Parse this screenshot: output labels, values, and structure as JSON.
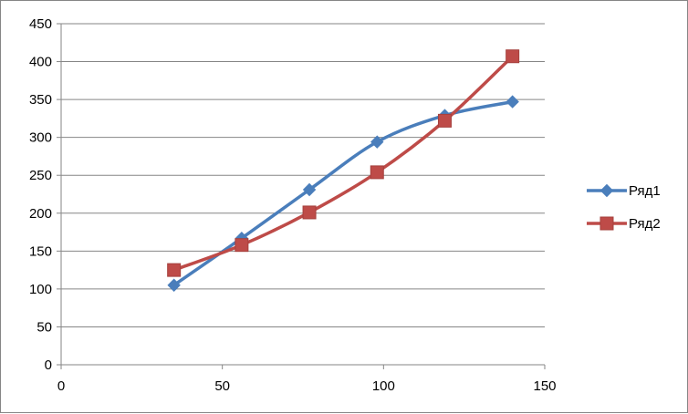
{
  "chart_data": {
    "type": "scatter",
    "title": "",
    "xlabel": "",
    "ylabel": "",
    "xlim": [
      0,
      150
    ],
    "ylim": [
      0,
      450
    ],
    "x_ticks": [
      0,
      50,
      100,
      150
    ],
    "y_ticks": [
      0,
      50,
      100,
      150,
      200,
      250,
      300,
      350,
      400,
      450
    ],
    "grid": {
      "horizontal": true,
      "vertical": false
    },
    "smooth_lines": true,
    "legend_position": "right",
    "series": [
      {
        "name": "Ряд1",
        "color": "#4a7ebb",
        "marker": "diamond",
        "points": [
          [
            35,
            105
          ],
          [
            56,
            167
          ],
          [
            77,
            231
          ],
          [
            98,
            294
          ],
          [
            119,
            329
          ],
          [
            140,
            347
          ]
        ]
      },
      {
        "name": "Ряд2",
        "color": "#be4b48",
        "marker": "square",
        "points": [
          [
            35,
            125
          ],
          [
            56,
            158
          ],
          [
            77,
            201
          ],
          [
            98,
            254
          ],
          [
            119,
            322
          ],
          [
            140,
            407
          ]
        ]
      }
    ]
  }
}
